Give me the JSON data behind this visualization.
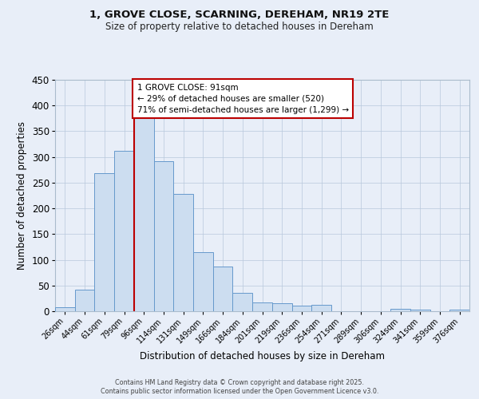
{
  "title1": "1, GROVE CLOSE, SCARNING, DEREHAM, NR19 2TE",
  "title2": "Size of property relative to detached houses in Dereham",
  "xlabel": "Distribution of detached houses by size in Dereham",
  "ylabel": "Number of detached properties",
  "bar_labels": [
    "26sqm",
    "44sqm",
    "61sqm",
    "79sqm",
    "96sqm",
    "114sqm",
    "131sqm",
    "149sqm",
    "166sqm",
    "184sqm",
    "201sqm",
    "219sqm",
    "236sqm",
    "254sqm",
    "271sqm",
    "289sqm",
    "306sqm",
    "324sqm",
    "341sqm",
    "359sqm",
    "376sqm"
  ],
  "bar_values": [
    8,
    42,
    268,
    312,
    375,
    292,
    228,
    115,
    87,
    35,
    17,
    15,
    11,
    12,
    0,
    0,
    0,
    4,
    3,
    0,
    3
  ],
  "bar_color": "#ccddf0",
  "bar_edge_color": "#6699cc",
  "vline_color": "#bb0000",
  "vline_index": 4,
  "annotation_line1": "1 GROVE CLOSE: 91sqm",
  "annotation_line2": "← 29% of detached houses are smaller (520)",
  "annotation_line3": "71% of semi-detached houses are larger (1,299) →",
  "annotation_box_facecolor": "#ffffff",
  "annotation_box_edgecolor": "#bb0000",
  "ylim": [
    0,
    450
  ],
  "yticks": [
    0,
    50,
    100,
    150,
    200,
    250,
    300,
    350,
    400,
    450
  ],
  "background_color": "#e8eef8",
  "grid_color": "#b8c8dc",
  "footnote1": "Contains HM Land Registry data © Crown copyright and database right 2025.",
  "footnote2": "Contains public sector information licensed under the Open Government Licence v3.0."
}
